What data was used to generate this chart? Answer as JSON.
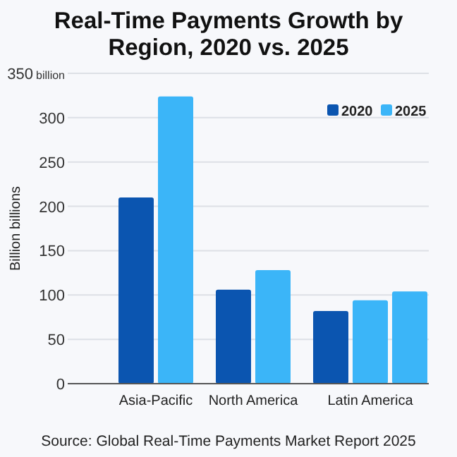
{
  "chart_data": {
    "type": "bar",
    "title": "Real-Time Payments Growth by Region, 2020 vs. 2025",
    "ylabel": "Billion billions",
    "categories": [
      "Asia-Pacific",
      "North America",
      "Latin America"
    ],
    "series": [
      {
        "name": "2020",
        "color": "#0b55b0",
        "values": [
          210,
          106,
          82
        ]
      },
      {
        "name": "2025",
        "color": "#3bb5f8",
        "values": [
          324,
          128,
          94
        ]
      },
      {
        "color": "#3bb5f8",
        "values": [
          null,
          null,
          104
        ]
      }
    ],
    "ylim": [
      0,
      350
    ],
    "yticks": [
      0,
      50,
      100,
      150,
      200,
      250,
      300,
      {
        "value": 350,
        "label": "350 billion"
      }
    ],
    "grid": "y",
    "legend": "top right",
    "annotations": [
      "Source: Global Real-Time Payments Market Report 2025"
    ]
  }
}
